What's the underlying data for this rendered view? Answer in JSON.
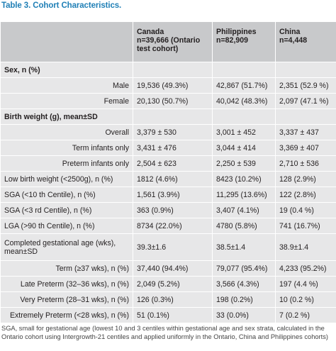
{
  "caption": {
    "label": "Table 3.",
    "title": "Cohort Characteristics."
  },
  "columns": [
    {
      "line1": "Canada",
      "line2": "n=39,666 (Ontario",
      "line3": "test cohort)"
    },
    {
      "line1": "Philippines",
      "line2": "n=82,909",
      "line3": ""
    },
    {
      "line1": "China",
      "line2": "n=4,448",
      "line3": ""
    }
  ],
  "rows": [
    {
      "type": "section",
      "label": "Sex, n (%)",
      "values": [
        "",
        "",
        ""
      ]
    },
    {
      "type": "row",
      "label": "Male",
      "align": "right",
      "values": [
        "19,536 (49.3%)",
        "42,867 (51.7%)",
        "2,351 (52.9 %)"
      ]
    },
    {
      "type": "row",
      "label": "Female",
      "align": "right",
      "values": [
        "20,130 (50.7%)",
        "40,042 (48.3%)",
        "2,097 (47.1 %)"
      ]
    },
    {
      "type": "section",
      "label": "Birth weight (g), mean±SD",
      "values": [
        "",
        "",
        ""
      ]
    },
    {
      "type": "row",
      "label": "Overall",
      "align": "right",
      "values": [
        "3,379 ± 530",
        "3,001 ± 452",
        "3,337 ± 437"
      ]
    },
    {
      "type": "row",
      "label": "Term infants only",
      "align": "right",
      "values": [
        "3,431 ± 476",
        "3,044 ± 414",
        "3,369 ± 407"
      ]
    },
    {
      "type": "row",
      "label": "Preterm infants only",
      "align": "right",
      "values": [
        "2,504 ± 623",
        "2,250 ± 539",
        "2,710 ± 536"
      ]
    },
    {
      "type": "row",
      "label": "Low birth weight (<2500g), n (%)",
      "align": "left",
      "values": [
        "1812 (4.6%)",
        "8423 (10.2%)",
        "128 (2.9%)"
      ]
    },
    {
      "type": "row",
      "label": "SGA (<10 th Centile), n (%)",
      "align": "left",
      "values": [
        "1,561 (3.9%)",
        "11,295 (13.6%)",
        "122 (2.8%)"
      ]
    },
    {
      "type": "row",
      "label": "SGA (<3 rd Centile), n (%)",
      "align": "left",
      "values": [
        "363 (0.9%)",
        "3,407 (4.1%)",
        "19 (0.4 %)"
      ]
    },
    {
      "type": "row",
      "label": "LGA (>90 th Centile), n (%)",
      "align": "left",
      "values": [
        "8734 (22.0%)",
        "4780 (5.8%)",
        "741 (16.7%)"
      ]
    },
    {
      "type": "tall",
      "label": "Completed gestational age (wks), mean±SD",
      "align": "left",
      "values": [
        "39.3±1.6",
        "38.5±1.4",
        "38.9±1.4"
      ]
    },
    {
      "type": "row",
      "label": "Term (≥37 wks), n (%)",
      "align": "right",
      "values": [
        "37,440 (94.4%)",
        "79,077 (95.4%)",
        "4,233 (95.2%)"
      ]
    },
    {
      "type": "row",
      "label": "Late Preterm (32–36 wks), n (%)",
      "align": "right",
      "values": [
        "2,049 (5.2%)",
        "3,566 (4.3%)",
        "197 (4.4 %)"
      ]
    },
    {
      "type": "row",
      "label": "Very Preterm (28–31 wks), n (%)",
      "align": "right",
      "values": [
        "126 (0.3%)",
        "198 (0.2%)",
        "10 (0.2 %)"
      ]
    },
    {
      "type": "row",
      "label": "Extremely Preterm (<28 wks), n (%)",
      "align": "right",
      "values": [
        "51 (0.1%)",
        "33 (0.0%)",
        "7 (0.2 %)"
      ]
    }
  ],
  "footnote": "SGA, small for gestational age (lowest 10 and 3 centiles within gestational age and sex strata, calculated in the Ontario cohort using Intergrowth-21 centiles and applied uniformly in the Ontario, China and Philippines cohorts)"
}
